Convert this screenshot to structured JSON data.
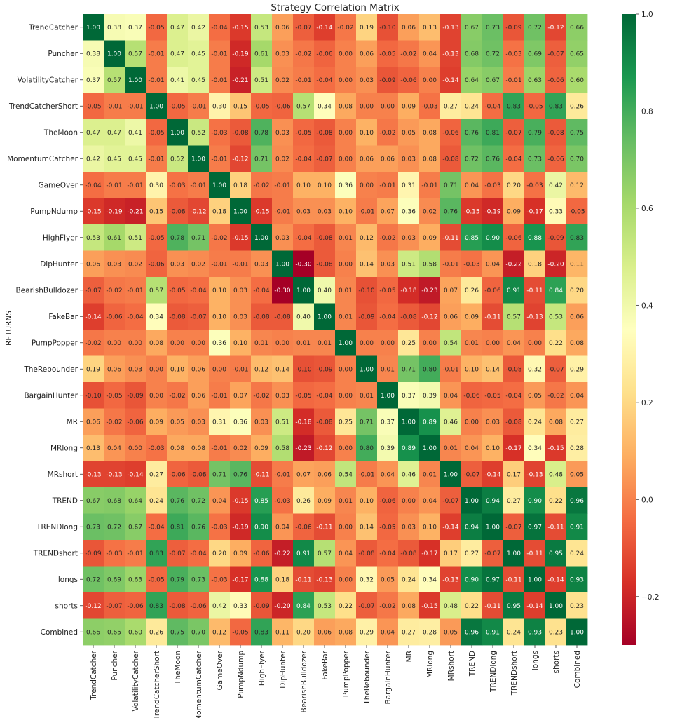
{
  "chart_data": {
    "type": "heatmap",
    "title": "Strategy Correlation Matrix",
    "ylabel": "RETURNS",
    "xlabel": "",
    "colormap": "RdYlGn",
    "value_range": [
      -0.3,
      1.0
    ],
    "colorbar_ticks": [
      "1.0",
      "0.8",
      "0.6",
      "0.4",
      "0.2",
      "0.0",
      "−0.2"
    ],
    "colorbar_tick_values": [
      1.0,
      0.8,
      0.6,
      0.4,
      0.2,
      0.0,
      -0.2
    ],
    "labels": [
      "TrendCatcher",
      "Puncher",
      "VolatilityCatcher",
      "TrendCatcherShort",
      "TheMoon",
      "MomentumCatcher",
      "GameOver",
      "PumpNdump",
      "HighFlyer",
      "DipHunter",
      "BearishBulldozer",
      "FakeBar",
      "PumpPopper",
      "TheRebounder",
      "BargainHunter",
      "MR",
      "MRlong",
      "MRshort",
      "TREND",
      "TRENDlong",
      "TRENDshort",
      "longs",
      "shorts",
      "Combined"
    ],
    "matrix": [
      [
        "1.00",
        "0.38",
        "0.37",
        "-0.05",
        "0.47",
        "0.42",
        "-0.04",
        "-0.15",
        "0.53",
        "0.06",
        "-0.07",
        "-0.14",
        "-0.02",
        "0.19",
        "-0.10",
        "0.06",
        "0.13",
        "-0.13",
        "0.67",
        "0.73",
        "-0.09",
        "0.72",
        "-0.12",
        "0.66"
      ],
      [
        "0.38",
        "1.00",
        "0.57",
        "-0.01",
        "0.47",
        "0.45",
        "-0.01",
        "-0.19",
        "0.61",
        "0.03",
        "-0.02",
        "-0.06",
        "0.00",
        "0.06",
        "-0.05",
        "-0.02",
        "0.04",
        "-0.13",
        "0.68",
        "0.72",
        "-0.03",
        "0.69",
        "-0.07",
        "0.65"
      ],
      [
        "0.37",
        "0.57",
        "1.00",
        "-0.01",
        "0.41",
        "0.45",
        "-0.01",
        "-0.21",
        "0.51",
        "0.02",
        "-0.01",
        "-0.04",
        "0.00",
        "0.03",
        "-0.09",
        "-0.06",
        "0.00",
        "-0.14",
        "0.64",
        "0.67",
        "-0.01",
        "0.63",
        "-0.06",
        "0.60"
      ],
      [
        "-0.05",
        "-0.01",
        "-0.01",
        "1.00",
        "-0.05",
        "-0.01",
        "0.30",
        "0.15",
        "-0.05",
        "-0.06",
        "0.57",
        "0.34",
        "0.08",
        "0.00",
        "0.00",
        "0.09",
        "-0.03",
        "0.27",
        "0.24",
        "-0.04",
        "0.83",
        "-0.05",
        "0.83",
        "0.26"
      ],
      [
        "0.47",
        "0.47",
        "0.41",
        "-0.05",
        "1.00",
        "0.52",
        "-0.03",
        "-0.08",
        "0.78",
        "0.03",
        "-0.05",
        "-0.08",
        "0.00",
        "0.10",
        "-0.02",
        "0.05",
        "0.08",
        "-0.06",
        "0.76",
        "0.81",
        "-0.07",
        "0.79",
        "-0.08",
        "0.75"
      ],
      [
        "0.42",
        "0.45",
        "0.45",
        "-0.01",
        "0.52",
        "1.00",
        "-0.01",
        "-0.12",
        "0.71",
        "0.02",
        "-0.04",
        "-0.07",
        "0.00",
        "0.06",
        "0.06",
        "0.03",
        "0.08",
        "-0.08",
        "0.72",
        "0.76",
        "-0.04",
        "0.73",
        "-0.06",
        "0.70"
      ],
      [
        "-0.04",
        "-0.01",
        "-0.01",
        "0.30",
        "-0.03",
        "-0.01",
        "1.00",
        "0.18",
        "-0.02",
        "-0.01",
        "0.10",
        "0.10",
        "0.36",
        "0.00",
        "-0.01",
        "0.31",
        "-0.01",
        "0.71",
        "0.04",
        "-0.03",
        "0.20",
        "-0.03",
        "0.42",
        "0.12"
      ],
      [
        "-0.15",
        "-0.19",
        "-0.21",
        "0.15",
        "-0.08",
        "-0.12",
        "0.18",
        "1.00",
        "-0.15",
        "-0.01",
        "0.03",
        "0.03",
        "0.10",
        "-0.01",
        "0.07",
        "0.36",
        "0.02",
        "0.76",
        "-0.15",
        "-0.19",
        "0.09",
        "-0.17",
        "0.33",
        "-0.05"
      ],
      [
        "0.53",
        "0.61",
        "0.51",
        "-0.05",
        "0.78",
        "0.71",
        "-0.02",
        "-0.15",
        "1.00",
        "0.03",
        "-0.04",
        "-0.08",
        "0.01",
        "0.12",
        "-0.02",
        "0.03",
        "0.09",
        "-0.11",
        "0.85",
        "0.90",
        "-0.06",
        "0.88",
        "-0.09",
        "0.83"
      ],
      [
        "0.06",
        "0.03",
        "0.02",
        "-0.06",
        "0.03",
        "0.02",
        "-0.01",
        "-0.01",
        "0.03",
        "1.00",
        "-0.30",
        "-0.08",
        "0.00",
        "0.14",
        "0.03",
        "0.51",
        "0.58",
        "-0.01",
        "-0.03",
        "0.04",
        "-0.22",
        "0.18",
        "-0.20",
        "0.11"
      ],
      [
        "-0.07",
        "-0.02",
        "-0.01",
        "0.57",
        "-0.05",
        "-0.04",
        "0.10",
        "0.03",
        "-0.04",
        "-0.30",
        "1.00",
        "0.40",
        "0.01",
        "-0.10",
        "-0.05",
        "-0.18",
        "-0.23",
        "0.07",
        "0.26",
        "-0.06",
        "0.91",
        "-0.11",
        "0.84",
        "0.20"
      ],
      [
        "-0.14",
        "-0.06",
        "-0.04",
        "0.34",
        "-0.08",
        "-0.07",
        "0.10",
        "0.03",
        "-0.08",
        "-0.08",
        "0.40",
        "1.00",
        "0.01",
        "-0.09",
        "-0.04",
        "-0.08",
        "-0.12",
        "0.06",
        "0.09",
        "-0.11",
        "0.57",
        "-0.13",
        "0.53",
        "0.06"
      ],
      [
        "-0.02",
        "0.00",
        "0.00",
        "0.08",
        "0.00",
        "0.00",
        "0.36",
        "0.10",
        "0.01",
        "0.00",
        "0.01",
        "0.01",
        "1.00",
        "0.00",
        "0.00",
        "0.25",
        "0.00",
        "0.54",
        "0.01",
        "0.00",
        "0.04",
        "0.00",
        "0.22",
        "0.08"
      ],
      [
        "0.19",
        "0.06",
        "0.03",
        "0.00",
        "0.10",
        "0.06",
        "0.00",
        "-0.01",
        "0.12",
        "0.14",
        "-0.10",
        "-0.09",
        "0.00",
        "1.00",
        "0.01",
        "0.71",
        "0.80",
        "-0.01",
        "0.10",
        "0.14",
        "-0.08",
        "0.32",
        "-0.07",
        "0.29"
      ],
      [
        "-0.10",
        "-0.05",
        "-0.09",
        "0.00",
        "-0.02",
        "0.06",
        "-0.01",
        "0.07",
        "-0.02",
        "0.03",
        "-0.05",
        "-0.04",
        "0.00",
        "0.01",
        "1.00",
        "0.37",
        "0.39",
        "0.04",
        "-0.06",
        "-0.05",
        "-0.04",
        "0.05",
        "-0.02",
        "0.04"
      ],
      [
        "0.06",
        "-0.02",
        "-0.06",
        "0.09",
        "0.05",
        "0.03",
        "0.31",
        "0.36",
        "0.03",
        "0.51",
        "-0.18",
        "-0.08",
        "0.25",
        "0.71",
        "0.37",
        "1.00",
        "0.89",
        "0.46",
        "0.00",
        "0.03",
        "-0.08",
        "0.24",
        "0.08",
        "0.27"
      ],
      [
        "0.13",
        "0.04",
        "0.00",
        "-0.03",
        "0.08",
        "0.08",
        "-0.01",
        "0.02",
        "0.09",
        "0.58",
        "-0.23",
        "-0.12",
        "0.00",
        "0.80",
        "0.39",
        "0.89",
        "1.00",
        "0.01",
        "0.04",
        "0.10",
        "-0.17",
        "0.34",
        "-0.15",
        "0.28"
      ],
      [
        "-0.13",
        "-0.13",
        "-0.14",
        "0.27",
        "-0.06",
        "-0.08",
        "0.71",
        "0.76",
        "-0.11",
        "-0.01",
        "0.07",
        "0.06",
        "0.54",
        "-0.01",
        "0.04",
        "0.46",
        "0.01",
        "1.00",
        "-0.07",
        "-0.14",
        "0.17",
        "-0.13",
        "0.48",
        "0.05"
      ],
      [
        "0.67",
        "0.68",
        "0.64",
        "0.24",
        "0.76",
        "0.72",
        "0.04",
        "-0.15",
        "0.85",
        "-0.03",
        "0.26",
        "0.09",
        "0.01",
        "0.10",
        "-0.06",
        "0.00",
        "0.04",
        "-0.07",
        "1.00",
        "0.94",
        "0.27",
        "0.90",
        "0.22",
        "0.96"
      ],
      [
        "0.73",
        "0.72",
        "0.67",
        "-0.04",
        "0.81",
        "0.76",
        "-0.03",
        "-0.19",
        "0.90",
        "0.04",
        "-0.06",
        "-0.11",
        "0.00",
        "0.14",
        "-0.05",
        "0.03",
        "0.10",
        "-0.14",
        "0.94",
        "1.00",
        "-0.07",
        "0.97",
        "-0.11",
        "0.91"
      ],
      [
        "-0.09",
        "-0.03",
        "-0.01",
        "0.83",
        "-0.07",
        "-0.04",
        "0.20",
        "0.09",
        "-0.06",
        "-0.22",
        "0.91",
        "0.57",
        "0.04",
        "-0.08",
        "-0.04",
        "-0.08",
        "-0.17",
        "0.17",
        "0.27",
        "-0.07",
        "1.00",
        "-0.11",
        "0.95",
        "0.24"
      ],
      [
        "0.72",
        "0.69",
        "0.63",
        "-0.05",
        "0.79",
        "0.73",
        "-0.03",
        "-0.17",
        "0.88",
        "0.18",
        "-0.11",
        "-0.13",
        "0.00",
        "0.32",
        "0.05",
        "0.24",
        "0.34",
        "-0.13",
        "0.90",
        "0.97",
        "-0.11",
        "1.00",
        "-0.14",
        "0.93"
      ],
      [
        "-0.12",
        "-0.07",
        "-0.06",
        "0.83",
        "-0.08",
        "-0.06",
        "0.42",
        "0.33",
        "-0.09",
        "-0.20",
        "0.84",
        "0.53",
        "0.22",
        "-0.07",
        "-0.02",
        "0.08",
        "-0.15",
        "0.48",
        "0.22",
        "-0.11",
        "0.95",
        "-0.14",
        "1.00",
        "0.23"
      ],
      [
        "0.66",
        "0.65",
        "0.60",
        "0.26",
        "0.75",
        "0.70",
        "0.12",
        "-0.05",
        "0.83",
        "0.11",
        "0.20",
        "0.06",
        "0.08",
        "0.29",
        "0.04",
        "0.27",
        "0.28",
        "0.05",
        "0.96",
        "0.91",
        "0.24",
        "0.93",
        "0.23",
        "1.00"
      ]
    ]
  }
}
